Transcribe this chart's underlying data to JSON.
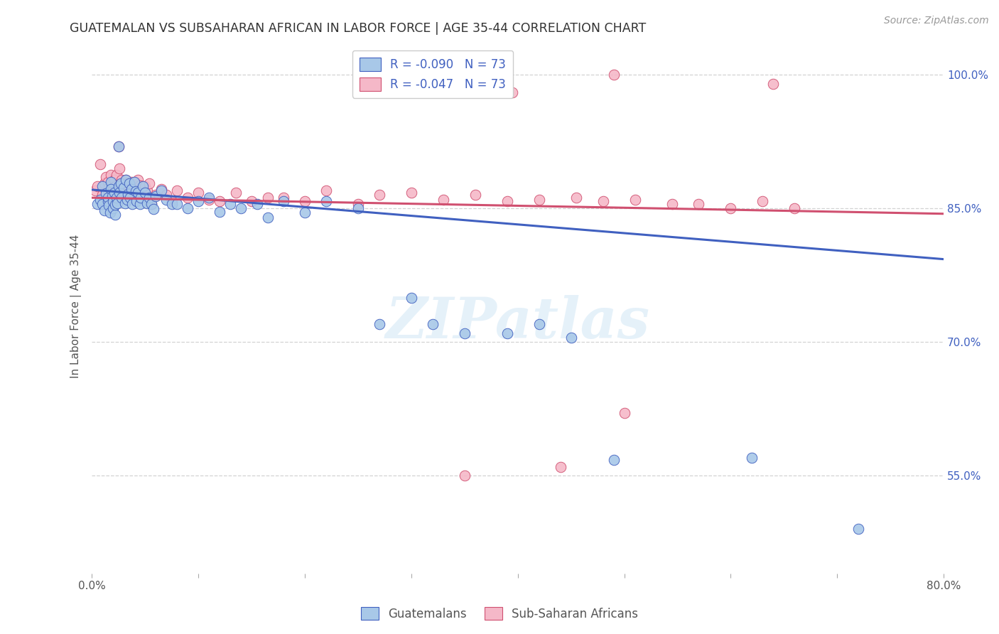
{
  "title": "GUATEMALAN VS SUBSAHARAN AFRICAN IN LABOR FORCE | AGE 35-44 CORRELATION CHART",
  "source": "Source: ZipAtlas.com",
  "ylabel": "In Labor Force | Age 35-44",
  "xlim": [
    0.0,
    0.8
  ],
  "ylim": [
    0.44,
    1.04
  ],
  "ytick_positions": [
    0.55,
    0.7,
    0.85,
    1.0
  ],
  "ytick_labels": [
    "55.0%",
    "70.0%",
    "85.0%",
    "100.0%"
  ],
  "legend_blue_label": "Guatemalans",
  "legend_pink_label": "Sub-Saharan Africans",
  "R_blue": -0.09,
  "N_blue": 73,
  "R_pink": -0.047,
  "N_pink": 73,
  "blue_color": "#a8c8e8",
  "pink_color": "#f5b8c8",
  "blue_line_color": "#4060c0",
  "pink_line_color": "#d05070",
  "watermark": "ZIPatlas",
  "background_color": "#ffffff",
  "grid_color": "#c8c8c8",
  "blue_trend_x0": 0.0,
  "blue_trend_y0": 0.871,
  "blue_trend_x1": 0.8,
  "blue_trend_y1": 0.793,
  "pink_trend_x0": 0.0,
  "pink_trend_y0": 0.862,
  "pink_trend_x1": 0.8,
  "pink_trend_y1": 0.844,
  "blue_scatter_x": [
    0.005,
    0.008,
    0.01,
    0.01,
    0.012,
    0.013,
    0.015,
    0.015,
    0.016,
    0.017,
    0.018,
    0.018,
    0.019,
    0.02,
    0.02,
    0.021,
    0.022,
    0.022,
    0.023,
    0.024,
    0.025,
    0.025,
    0.026,
    0.027,
    0.028,
    0.03,
    0.031,
    0.032,
    0.033,
    0.034,
    0.035,
    0.036,
    0.037,
    0.038,
    0.04,
    0.041,
    0.042,
    0.043,
    0.045,
    0.046,
    0.048,
    0.05,
    0.052,
    0.054,
    0.056,
    0.058,
    0.06,
    0.065,
    0.07,
    0.075,
    0.08,
    0.09,
    0.1,
    0.11,
    0.12,
    0.13,
    0.14,
    0.155,
    0.165,
    0.18,
    0.2,
    0.22,
    0.25,
    0.27,
    0.3,
    0.32,
    0.35,
    0.39,
    0.42,
    0.45,
    0.49,
    0.62,
    0.72
  ],
  "blue_scatter_y": [
    0.855,
    0.86,
    0.855,
    0.875,
    0.848,
    0.867,
    0.858,
    0.862,
    0.853,
    0.845,
    0.88,
    0.872,
    0.864,
    0.85,
    0.858,
    0.868,
    0.843,
    0.854,
    0.862,
    0.856,
    0.92,
    0.875,
    0.868,
    0.878,
    0.862,
    0.873,
    0.856,
    0.882,
    0.86,
    0.866,
    0.878,
    0.862,
    0.872,
    0.855,
    0.88,
    0.869,
    0.858,
    0.868,
    0.855,
    0.862,
    0.875,
    0.868,
    0.856,
    0.862,
    0.855,
    0.849,
    0.864,
    0.87,
    0.86,
    0.855,
    0.855,
    0.85,
    0.858,
    0.862,
    0.846,
    0.855,
    0.85,
    0.855,
    0.84,
    0.858,
    0.845,
    0.858,
    0.85,
    0.72,
    0.75,
    0.72,
    0.71,
    0.71,
    0.72,
    0.705,
    0.568,
    0.57,
    0.49
  ],
  "pink_scatter_x": [
    0.003,
    0.005,
    0.008,
    0.01,
    0.012,
    0.013,
    0.015,
    0.015,
    0.016,
    0.018,
    0.019,
    0.02,
    0.021,
    0.022,
    0.023,
    0.024,
    0.025,
    0.026,
    0.027,
    0.028,
    0.029,
    0.03,
    0.032,
    0.033,
    0.034,
    0.035,
    0.037,
    0.038,
    0.04,
    0.041,
    0.043,
    0.045,
    0.047,
    0.05,
    0.052,
    0.054,
    0.056,
    0.06,
    0.065,
    0.07,
    0.075,
    0.08,
    0.09,
    0.1,
    0.11,
    0.12,
    0.135,
    0.15,
    0.165,
    0.18,
    0.2,
    0.22,
    0.25,
    0.27,
    0.3,
    0.33,
    0.36,
    0.39,
    0.42,
    0.455,
    0.48,
    0.51,
    0.545,
    0.57,
    0.6,
    0.63,
    0.66,
    0.35,
    0.44,
    0.5,
    0.395,
    0.49,
    0.64
  ],
  "pink_scatter_y": [
    0.87,
    0.875,
    0.9,
    0.865,
    0.878,
    0.885,
    0.87,
    0.88,
    0.873,
    0.888,
    0.878,
    0.87,
    0.882,
    0.875,
    0.888,
    0.87,
    0.92,
    0.895,
    0.875,
    0.882,
    0.878,
    0.87,
    0.882,
    0.876,
    0.878,
    0.872,
    0.88,
    0.876,
    0.87,
    0.878,
    0.882,
    0.876,
    0.865,
    0.875,
    0.87,
    0.878,
    0.855,
    0.865,
    0.872,
    0.865,
    0.858,
    0.87,
    0.862,
    0.868,
    0.86,
    0.858,
    0.868,
    0.858,
    0.862,
    0.862,
    0.858,
    0.87,
    0.855,
    0.865,
    0.868,
    0.86,
    0.865,
    0.858,
    0.86,
    0.862,
    0.858,
    0.86,
    0.855,
    0.855,
    0.85,
    0.858,
    0.85,
    0.55,
    0.56,
    0.62,
    0.98,
    1.0,
    0.99
  ]
}
